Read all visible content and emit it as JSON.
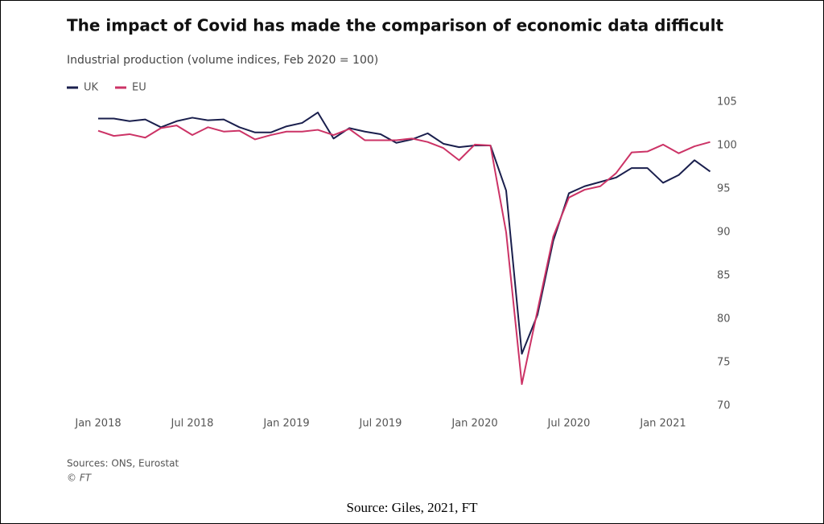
{
  "chart_data": {
    "type": "line",
    "title": "The impact of Covid has made the comparison of economic data difficult",
    "subtitle": "Industrial production (volume indices, Feb 2020 = 100)",
    "source": "Sources: ONS, Eurostat",
    "credit": "© FT",
    "caption": "Source: Giles, 2021, FT",
    "categories": [
      "Jan 2018",
      null,
      null,
      null,
      null,
      null,
      "Jul 2018",
      null,
      null,
      null,
      null,
      null,
      "Jan 2019",
      null,
      null,
      null,
      null,
      null,
      "Jul 2019",
      null,
      null,
      null,
      null,
      null,
      "Jan 2020",
      null,
      null,
      null,
      null,
      null,
      "Jul 2020",
      null,
      null,
      null,
      null,
      null,
      "Jan 2021",
      null,
      null,
      null
    ],
    "series": [
      {
        "name": "UK",
        "color": "#1a1f4d",
        "values": [
          103.1,
          103.1,
          102.8,
          103.0,
          102.1,
          102.8,
          103.2,
          102.9,
          103.0,
          102.1,
          101.5,
          101.5,
          102.2,
          102.6,
          103.8,
          100.8,
          102.0,
          101.6,
          101.3,
          100.3,
          100.7,
          101.4,
          100.2,
          99.8,
          100.0,
          100.0,
          94.8,
          76.0,
          80.5,
          89.0,
          94.5,
          95.3,
          95.8,
          96.3,
          97.4,
          97.4,
          95.7,
          96.6,
          98.3,
          97.0
        ]
      },
      {
        "name": "EU",
        "color": "#cc3366",
        "values": [
          101.7,
          101.1,
          101.3,
          100.9,
          102.0,
          102.3,
          101.2,
          102.1,
          101.6,
          101.7,
          100.7,
          101.2,
          101.6,
          101.6,
          101.8,
          101.2,
          101.9,
          100.6,
          100.6,
          100.6,
          100.8,
          100.4,
          99.7,
          98.3,
          100.1,
          100.0,
          90.0,
          72.5,
          81.0,
          89.5,
          94.0,
          94.9,
          95.3,
          96.8,
          99.2,
          99.3,
          100.1,
          99.1,
          99.9,
          100.4
        ]
      }
    ],
    "ylim": [
      70,
      105
    ],
    "yticks": [
      70,
      75,
      80,
      85,
      90,
      95,
      100,
      105
    ]
  }
}
